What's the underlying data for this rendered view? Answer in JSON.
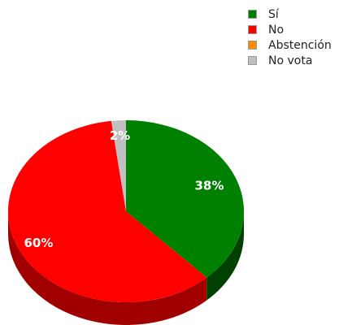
{
  "chart_data": {
    "type": "pie",
    "title": "",
    "style": "3d",
    "legend_position": "top-right",
    "categories": [
      "Sí",
      "No",
      "Abstención",
      "No vota"
    ],
    "values": [
      38,
      60,
      0,
      2
    ],
    "labels": [
      "38%",
      "60%",
      "",
      "2%"
    ],
    "colors": [
      "#008000",
      "#ff0000",
      "#ff8c00",
      "#c0c0c0"
    ],
    "side_colors": [
      "#004000",
      "#a00000",
      "#a05800",
      "#808080"
    ]
  }
}
